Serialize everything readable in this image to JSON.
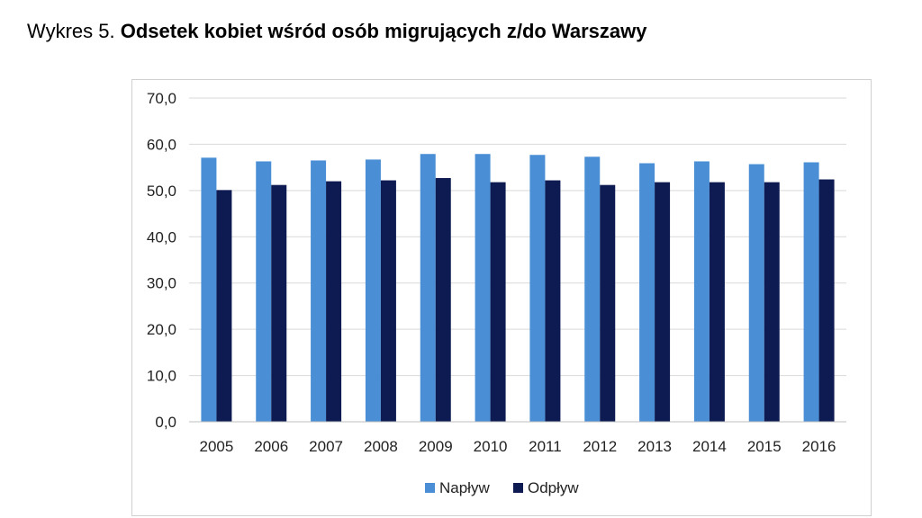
{
  "caption": {
    "prefix": "Wykres 5.",
    "title": "Odsetek kobiet wśród osób migrujących z/do Warszawy"
  },
  "chart_data": {
    "type": "bar",
    "categories": [
      "2005",
      "2006",
      "2007",
      "2008",
      "2009",
      "2010",
      "2011",
      "2012",
      "2013",
      "2014",
      "2015",
      "2016"
    ],
    "series": [
      {
        "name": "Napływ",
        "color": "#4a8fd6",
        "values": [
          57.1,
          56.3,
          56.5,
          56.7,
          57.9,
          57.9,
          57.7,
          57.3,
          55.9,
          56.3,
          55.7,
          56.1
        ]
      },
      {
        "name": "Odpływ",
        "color": "#0d1b52",
        "values": [
          50.1,
          51.2,
          52.0,
          52.2,
          52.7,
          51.8,
          52.2,
          51.2,
          51.8,
          51.8,
          51.8,
          52.4
        ]
      }
    ],
    "yticks": [
      "0,0",
      "10,0",
      "20,0",
      "30,0",
      "40,0",
      "50,0",
      "60,0",
      "70,0"
    ],
    "ylim": [
      0,
      70
    ],
    "grid": true,
    "legend_position": "bottom"
  }
}
